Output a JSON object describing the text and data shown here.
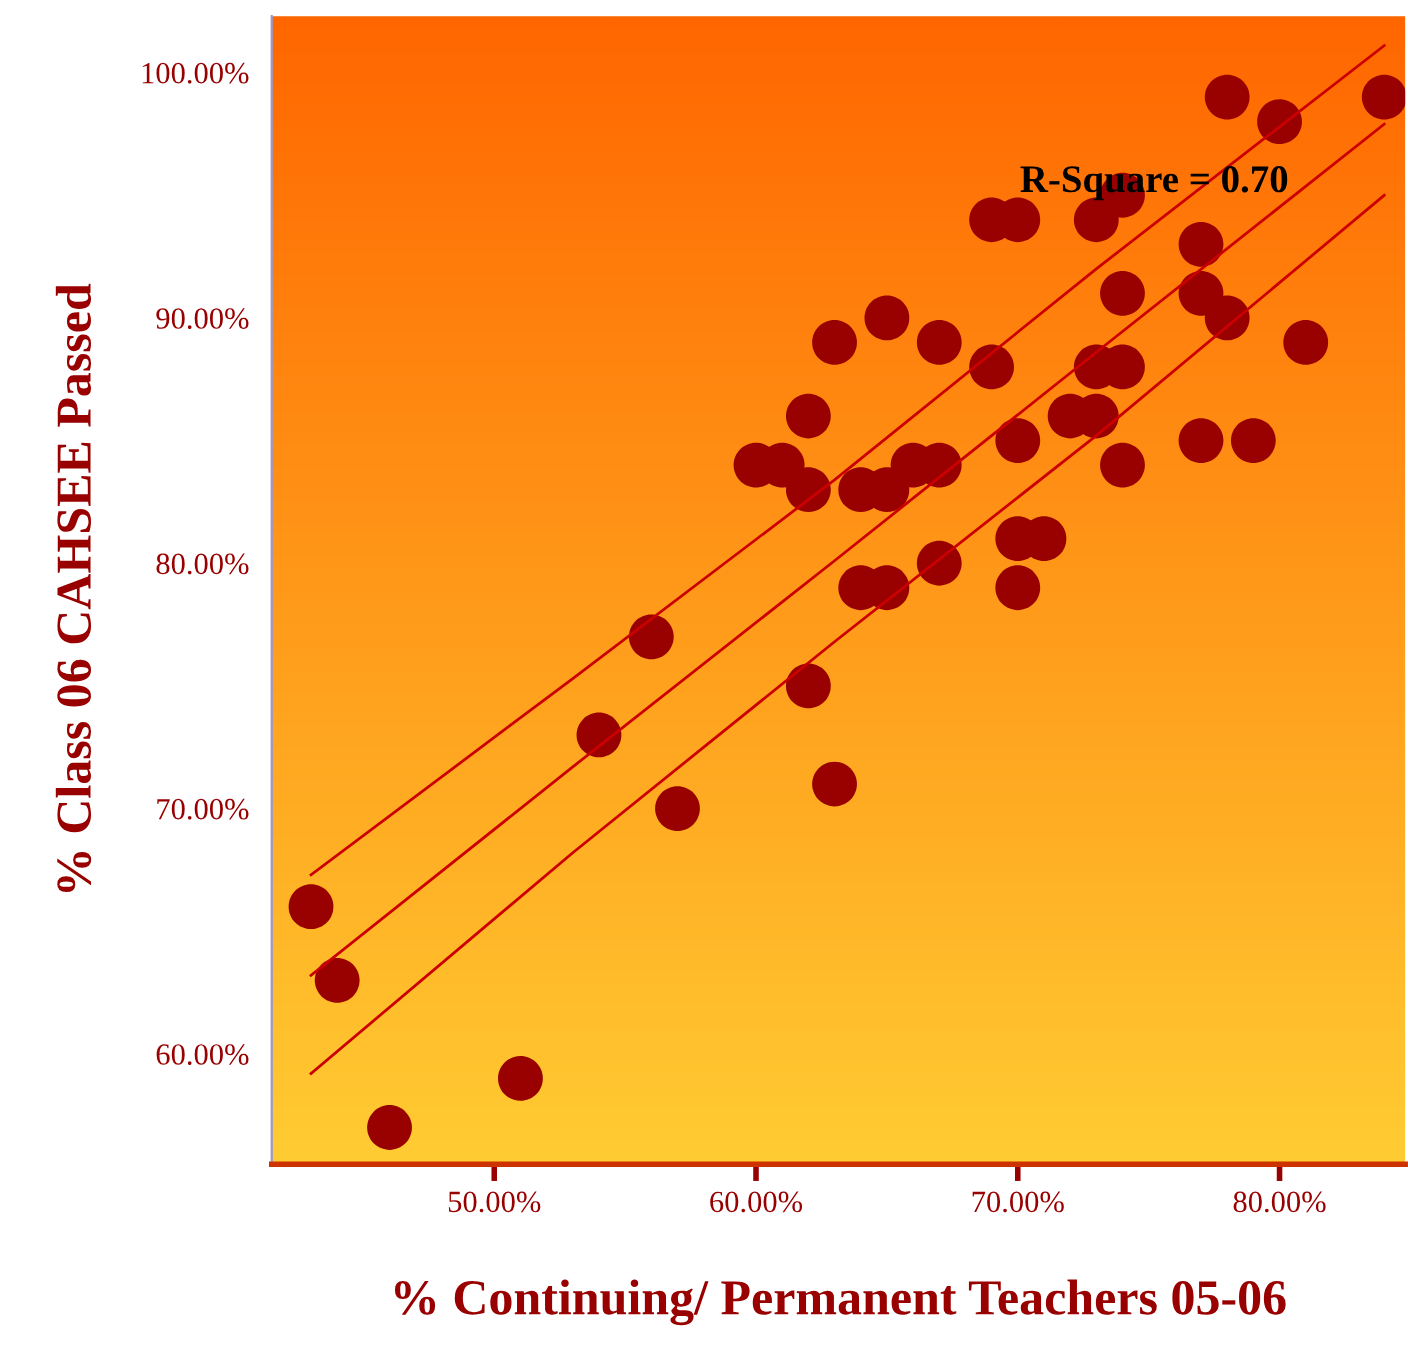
{
  "chart_data": {
    "type": "scatter",
    "xlabel": "% Continuing/ Permanent Teachers 05-06",
    "ylabel": "% Class 06 CAHSEE Passed",
    "annotations": [
      "R-Square = 0.70"
    ],
    "series": [
      {
        "color": "#990000",
        "marker": "circle",
        "x": [
          43,
          44,
          46,
          51,
          54,
          56,
          57,
          60,
          61,
          62,
          62,
          62,
          63,
          63,
          64,
          64,
          65,
          65,
          65,
          66,
          67,
          67,
          67,
          69,
          69,
          70,
          70,
          70,
          70,
          71,
          72,
          73,
          73,
          73,
          74,
          74,
          74,
          74,
          77,
          77,
          77,
          78,
          78,
          79,
          80,
          81,
          84
        ],
        "values": [
          66,
          63,
          57,
          59,
          73,
          77,
          70,
          84,
          84,
          86,
          83,
          75,
          71,
          89,
          83,
          79,
          90,
          83,
          79,
          84,
          89,
          84,
          80,
          88,
          94,
          94,
          85,
          81,
          79,
          81,
          86,
          94,
          88,
          86,
          95,
          91,
          88,
          84,
          93,
          91,
          85,
          99,
          90,
          85,
          98,
          89,
          99
        ]
      },
      {
        "type": "line",
        "color": "#cc0000",
        "marker": "none",
        "line_style": "solid",
        "x": [
          43,
          53,
          63,
          73,
          84
        ],
        "values": [
          63.2,
          71.7,
          80.1,
          88.6,
          97.9
        ]
      },
      {
        "type": "line",
        "color": "#cc0000",
        "marker": "none",
        "line_style": "solid",
        "x": [
          43,
          53,
          63,
          73,
          84
        ],
        "values": [
          59.2,
          68.2,
          76.8,
          85.2,
          95.0
        ]
      },
      {
        "type": "line",
        "color": "#cc0000",
        "marker": "none",
        "line_style": "solid",
        "x": [
          43,
          53,
          63,
          73,
          84
        ],
        "values": [
          67.3,
          75.3,
          83.4,
          92.0,
          101.1
        ]
      }
    ],
    "xlim": [
      41.5,
      84.8
    ],
    "ylim": [
      55.5,
      102.3
    ],
    "xticks": [
      {
        "value": 50,
        "label": "50.00%"
      },
      {
        "value": 60,
        "label": "60.00%"
      },
      {
        "value": 70,
        "label": "70.00%"
      },
      {
        "value": 80,
        "label": "80.00%"
      }
    ],
    "yticks": [
      {
        "value": 60,
        "label": "60.00%"
      },
      {
        "value": 70,
        "label": "70.00%"
      },
      {
        "value": 80,
        "label": "80.00%"
      },
      {
        "value": 90,
        "label": "90.00%"
      },
      {
        "value": 100,
        "label": "100.00%"
      }
    ],
    "grid": false,
    "legend": false
  }
}
